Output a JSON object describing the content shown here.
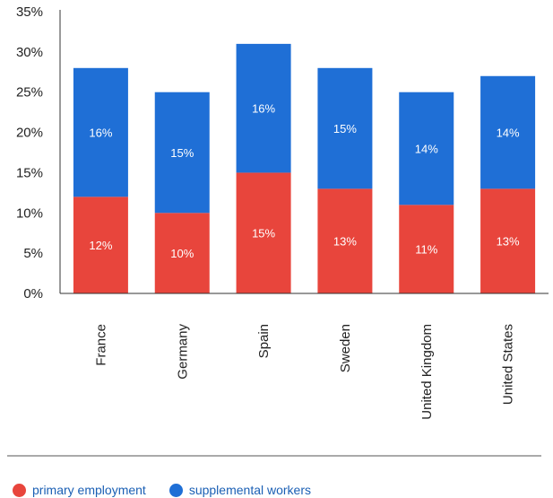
{
  "chart_data": {
    "type": "bar",
    "stacked": true,
    "categories": [
      "France",
      "Germany",
      "Spain",
      "Sweden",
      "United Kingdom",
      "United States"
    ],
    "series": [
      {
        "name": "primary employment",
        "color": "#e8453c",
        "values": [
          12,
          10,
          15,
          13,
          11,
          13
        ],
        "labels": [
          "12%",
          "10%",
          "15%",
          "13%",
          "11%",
          "13%"
        ]
      },
      {
        "name": "supplemental workers",
        "color": "#1f6fd6",
        "values": [
          16,
          15,
          16,
          15,
          14,
          14
        ],
        "labels": [
          "16%",
          "15%",
          "16%",
          "15%",
          "14%",
          "14%"
        ]
      }
    ],
    "y_ticks": [
      "0%",
      "5%",
      "10%",
      "15%",
      "20%",
      "25%",
      "30%",
      "35%"
    ],
    "ylim": [
      0,
      35
    ],
    "grid": false,
    "legend_position": "bottom-left"
  }
}
